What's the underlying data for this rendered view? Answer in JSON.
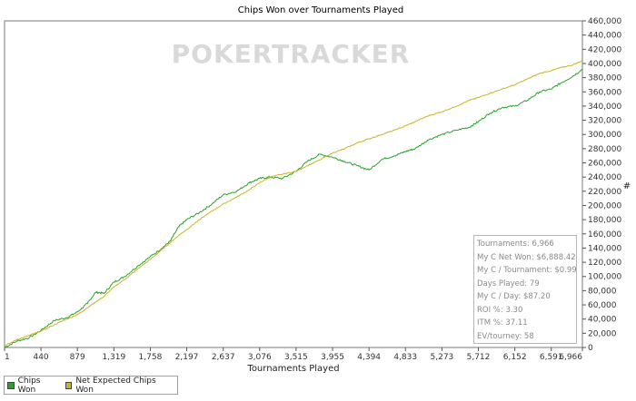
{
  "chart_data": {
    "type": "line",
    "title": "Chips Won over Tournaments Played",
    "xlabel": "Tournaments Played",
    "ylabel": "#",
    "xlim": [
      1,
      6966
    ],
    "ylim": [
      0,
      460000
    ],
    "x_ticks": [
      "1",
      "440",
      "879",
      "1,319",
      "1,758",
      "2,197",
      "2,637",
      "3,076",
      "3,515",
      "3,955",
      "4,394",
      "4,833",
      "5,273",
      "5,712",
      "6,152",
      "6,591",
      "6,966"
    ],
    "y_ticks": [
      "0",
      "20,000",
      "40,000",
      "60,000",
      "80,000",
      "100,000",
      "120,000",
      "140,000",
      "160,000",
      "180,000",
      "200,000",
      "220,000",
      "240,000",
      "260,000",
      "280,000",
      "300,000",
      "320,000",
      "340,000",
      "360,000",
      "380,000",
      "400,000",
      "420,000",
      "440,000",
      "460,000"
    ],
    "grid": false,
    "legend_position": "bottom-left",
    "series": [
      {
        "name": "Chips Won",
        "color": "#2aa12a",
        "points": [
          [
            1,
            0
          ],
          [
            150,
            9000
          ],
          [
            300,
            14000
          ],
          [
            440,
            24000
          ],
          [
            600,
            38000
          ],
          [
            750,
            42000
          ],
          [
            879,
            50000
          ],
          [
            1000,
            62000
          ],
          [
            1100,
            78000
          ],
          [
            1200,
            76000
          ],
          [
            1319,
            92000
          ],
          [
            1450,
            100000
          ],
          [
            1600,
            114000
          ],
          [
            1758,
            128000
          ],
          [
            1900,
            140000
          ],
          [
            2000,
            150000
          ],
          [
            2100,
            170000
          ],
          [
            2197,
            180000
          ],
          [
            2350,
            190000
          ],
          [
            2500,
            202000
          ],
          [
            2637,
            215000
          ],
          [
            2800,
            220000
          ],
          [
            2950,
            232000
          ],
          [
            3076,
            238000
          ],
          [
            3200,
            240000
          ],
          [
            3350,
            238000
          ],
          [
            3515,
            248000
          ],
          [
            3650,
            262000
          ],
          [
            3800,
            272000
          ],
          [
            3955,
            268000
          ],
          [
            4100,
            262000
          ],
          [
            4250,
            256000
          ],
          [
            4394,
            250000
          ],
          [
            4550,
            265000
          ],
          [
            4700,
            270000
          ],
          [
            4833,
            276000
          ],
          [
            4950,
            280000
          ],
          [
            5100,
            292000
          ],
          [
            5273,
            300000
          ],
          [
            5450,
            306000
          ],
          [
            5600,
            310000
          ],
          [
            5712,
            318000
          ],
          [
            5850,
            330000
          ],
          [
            6000,
            338000
          ],
          [
            6152,
            340000
          ],
          [
            6300,
            348000
          ],
          [
            6450,
            360000
          ],
          [
            6591,
            364000
          ],
          [
            6700,
            372000
          ],
          [
            6850,
            382000
          ],
          [
            6966,
            392000
          ]
        ]
      },
      {
        "name": "Net Expected Chips Won",
        "color": "#c8b42a",
        "points": [
          [
            1,
            2000
          ],
          [
            150,
            11000
          ],
          [
            300,
            17000
          ],
          [
            440,
            23000
          ],
          [
            600,
            32000
          ],
          [
            750,
            40000
          ],
          [
            879,
            46000
          ],
          [
            1000,
            56000
          ],
          [
            1100,
            64000
          ],
          [
            1200,
            72000
          ],
          [
            1319,
            85000
          ],
          [
            1450,
            96000
          ],
          [
            1600,
            110000
          ],
          [
            1758,
            124000
          ],
          [
            1900,
            138000
          ],
          [
            2000,
            148000
          ],
          [
            2100,
            158000
          ],
          [
            2197,
            166000
          ],
          [
            2350,
            180000
          ],
          [
            2500,
            192000
          ],
          [
            2637,
            202000
          ],
          [
            2800,
            212000
          ],
          [
            2950,
            222000
          ],
          [
            3076,
            232000
          ],
          [
            3200,
            240000
          ],
          [
            3350,
            244000
          ],
          [
            3515,
            248000
          ],
          [
            3650,
            256000
          ],
          [
            3800,
            264000
          ],
          [
            3955,
            274000
          ],
          [
            4100,
            280000
          ],
          [
            4250,
            288000
          ],
          [
            4394,
            294000
          ],
          [
            4550,
            300000
          ],
          [
            4700,
            306000
          ],
          [
            4833,
            312000
          ],
          [
            4950,
            318000
          ],
          [
            5100,
            326000
          ],
          [
            5273,
            332000
          ],
          [
            5450,
            340000
          ],
          [
            5600,
            348000
          ],
          [
            5712,
            352000
          ],
          [
            5850,
            358000
          ],
          [
            6000,
            364000
          ],
          [
            6152,
            370000
          ],
          [
            6300,
            378000
          ],
          [
            6450,
            386000
          ],
          [
            6591,
            390000
          ],
          [
            6700,
            394000
          ],
          [
            6850,
            398000
          ],
          [
            6966,
            404000
          ]
        ]
      }
    ]
  },
  "watermark": {
    "text": "POKERTRACKER"
  },
  "stats": {
    "tournaments": "Tournaments: 6,966",
    "net_won": "My C Net Won: $6,888.42",
    "per_tournament": "My C / Tournament: $0.99",
    "days_played": "Days Played: 79",
    "per_day": "My C / Day: $87.20",
    "roi": "ROI %: 3.30",
    "itm": "ITM %: 37.11",
    "ev": "EV/tourney: 58"
  },
  "legend": {
    "chips_won": "Chips Won",
    "net_expected": "Net Expected Chips Won"
  },
  "colors": {
    "chips_won": "#2aa12a",
    "net_expected": "#c8b42a"
  }
}
